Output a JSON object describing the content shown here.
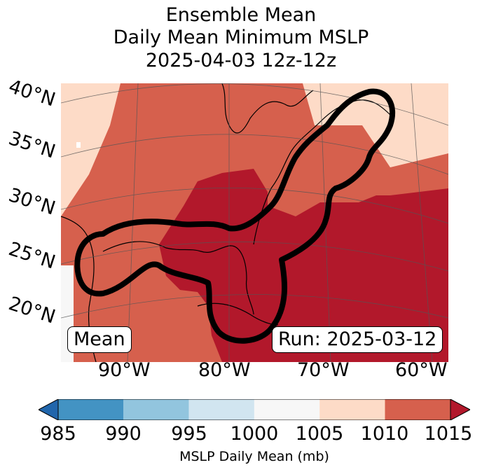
{
  "title": {
    "line1": "Ensemble Mean",
    "line2": "Daily Mean Minimum MSLP",
    "line3": "2025-04-03 12z-12z"
  },
  "latitude_labels": [
    "40°N",
    "35°N",
    "30°N",
    "25°N",
    "20°N"
  ],
  "longitude_labels": [
    "90°W",
    "80°W",
    "70°W",
    "60°W"
  ],
  "mean_badge": "Mean",
  "run_badge": "Run: 2025-03-12",
  "colorbar": {
    "label": "MSLP Daily Mean (mb)",
    "ticks": [
      "985",
      "990",
      "995",
      "1000",
      "1005",
      "1010",
      "1015"
    ],
    "colors": [
      "#2166ac",
      "#4393c3",
      "#92c5de",
      "#d1e5f0",
      "#f7f7f7",
      "#fddbc7",
      "#d6604d",
      "#b2182b"
    ]
  },
  "map_colors": {
    "low": "#fddbc7",
    "mid": "#d6604d",
    "high": "#b2182b",
    "contour": "#000000"
  }
}
